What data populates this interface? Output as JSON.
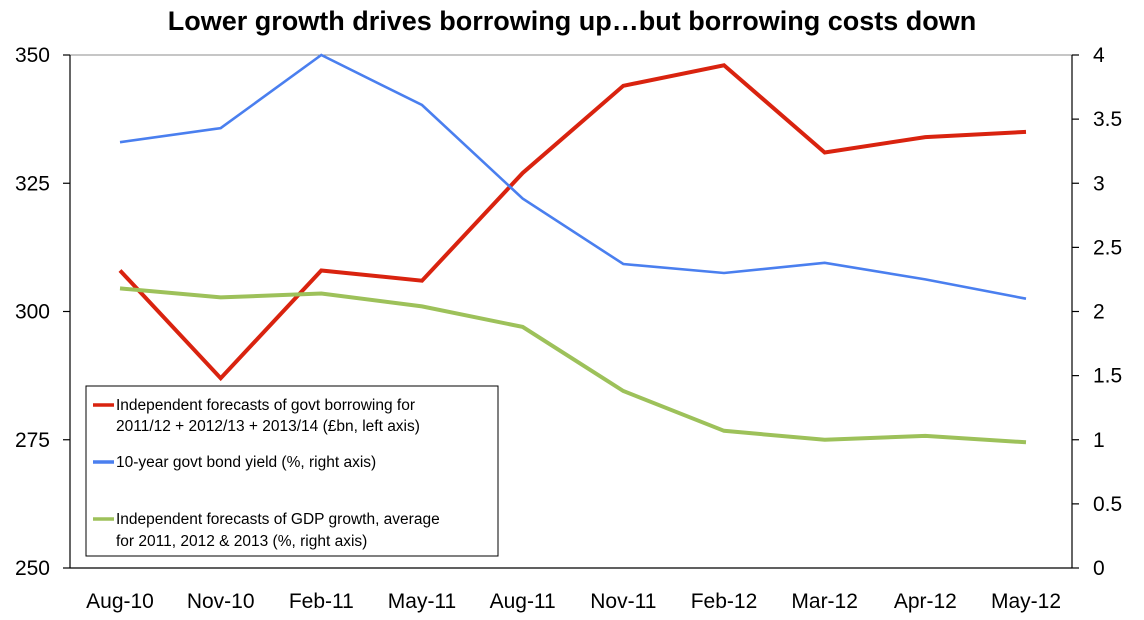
{
  "chart_data": {
    "type": "line",
    "title": "Lower growth drives borrowing up…but borrowing costs down",
    "categories": [
      "Aug-10",
      "Nov-10",
      "Feb-11",
      "May-11",
      "Aug-11",
      "Nov-11",
      "Feb-12",
      "Mar-12",
      "Apr-12",
      "May-12"
    ],
    "y_left": {
      "ylim": [
        250,
        350
      ],
      "ticks": [
        250,
        275,
        300,
        325,
        350
      ]
    },
    "y_right": {
      "ylim": [
        0,
        4
      ],
      "ticks": [
        "0",
        "0.5",
        "1",
        "1.5",
        "2",
        "2.5",
        "3",
        "3.5",
        "4"
      ]
    },
    "grid": "top line only",
    "legend_position": "bottom-left",
    "series": [
      {
        "name": "Independent forecasts of govt borrowing for 2011/12 + 2012/13 + 2013/14 (£bn, left axis)",
        "legend_lines": [
          "Independent forecasts of govt borrowing for",
          "2011/12 + 2012/13 + 2013/14 (£bn, left axis)"
        ],
        "axis": "left",
        "color": "#d9230f",
        "values": [
          308,
          287,
          308,
          306,
          327,
          344,
          348,
          331,
          334,
          335
        ]
      },
      {
        "name": "10-year govt bond yield (%, right axis)",
        "legend_lines": [
          "10-year govt bond yield (%, right axis)"
        ],
        "axis": "right",
        "color": "#4a7fef",
        "values": [
          3.32,
          3.43,
          4.0,
          3.61,
          2.88,
          2.37,
          2.3,
          2.38,
          2.25,
          2.1
        ]
      },
      {
        "name": "Independent forecasts of GDP growth, average for 2011, 2012 & 2013 (%, right axis)",
        "legend_lines": [
          "Independent forecasts of GDP growth, average",
          "for 2011, 2012 & 2013 (%, right axis)"
        ],
        "axis": "right",
        "color": "#9dc15a",
        "values": [
          2.18,
          2.11,
          2.14,
          2.04,
          1.88,
          1.38,
          1.07,
          1.0,
          1.03,
          0.98
        ]
      }
    ]
  }
}
